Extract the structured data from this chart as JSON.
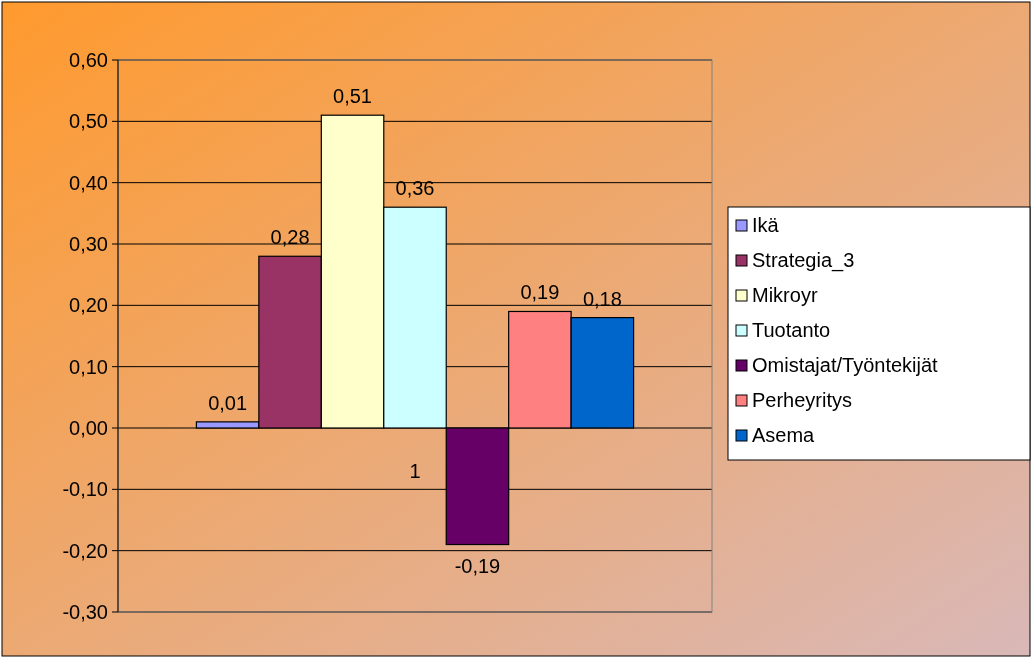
{
  "chart_data": {
    "type": "bar",
    "categories": [
      "1"
    ],
    "series": [
      {
        "name": "Ikä",
        "color": "#9999ff",
        "values": [
          0.01
        ],
        "value_labels": [
          "0,01"
        ]
      },
      {
        "name": "Strategia_3",
        "color": "#993366",
        "values": [
          0.28
        ],
        "value_labels": [
          "0,28"
        ]
      },
      {
        "name": "Mikroyr",
        "color": "#ffffcc",
        "values": [
          0.51
        ],
        "value_labels": [
          "0,51"
        ]
      },
      {
        "name": "Tuotanto",
        "color": "#ccffff",
        "values": [
          0.36
        ],
        "value_labels": [
          "0,36"
        ]
      },
      {
        "name": "Omistajat/Työntekijät",
        "color": "#660066",
        "values": [
          -0.19
        ],
        "value_labels": [
          "-0,19"
        ]
      },
      {
        "name": "Perheyritys",
        "color": "#ff8080",
        "values": [
          0.19
        ],
        "value_labels": [
          "0,19"
        ]
      },
      {
        "name": "Asema",
        "color": "#0066cc",
        "values": [
          0.18
        ],
        "value_labels": [
          "0,18"
        ]
      }
    ],
    "ylim": [
      -0.3,
      0.6
    ],
    "yticks": [
      {
        "value": -0.3,
        "label": "-0,30"
      },
      {
        "value": -0.2,
        "label": "-0,20"
      },
      {
        "value": -0.1,
        "label": "-0,10"
      },
      {
        "value": 0,
        "label": "0,00"
      },
      {
        "value": 0.1,
        "label": "0,10"
      },
      {
        "value": 0.2,
        "label": "0,20"
      },
      {
        "value": 0.3,
        "label": "0,30"
      },
      {
        "value": 0.4,
        "label": "0,40"
      },
      {
        "value": 0.5,
        "label": "0,50"
      },
      {
        "value": 0.6,
        "label": "0,60"
      }
    ],
    "grid": "y",
    "legend": "right"
  }
}
